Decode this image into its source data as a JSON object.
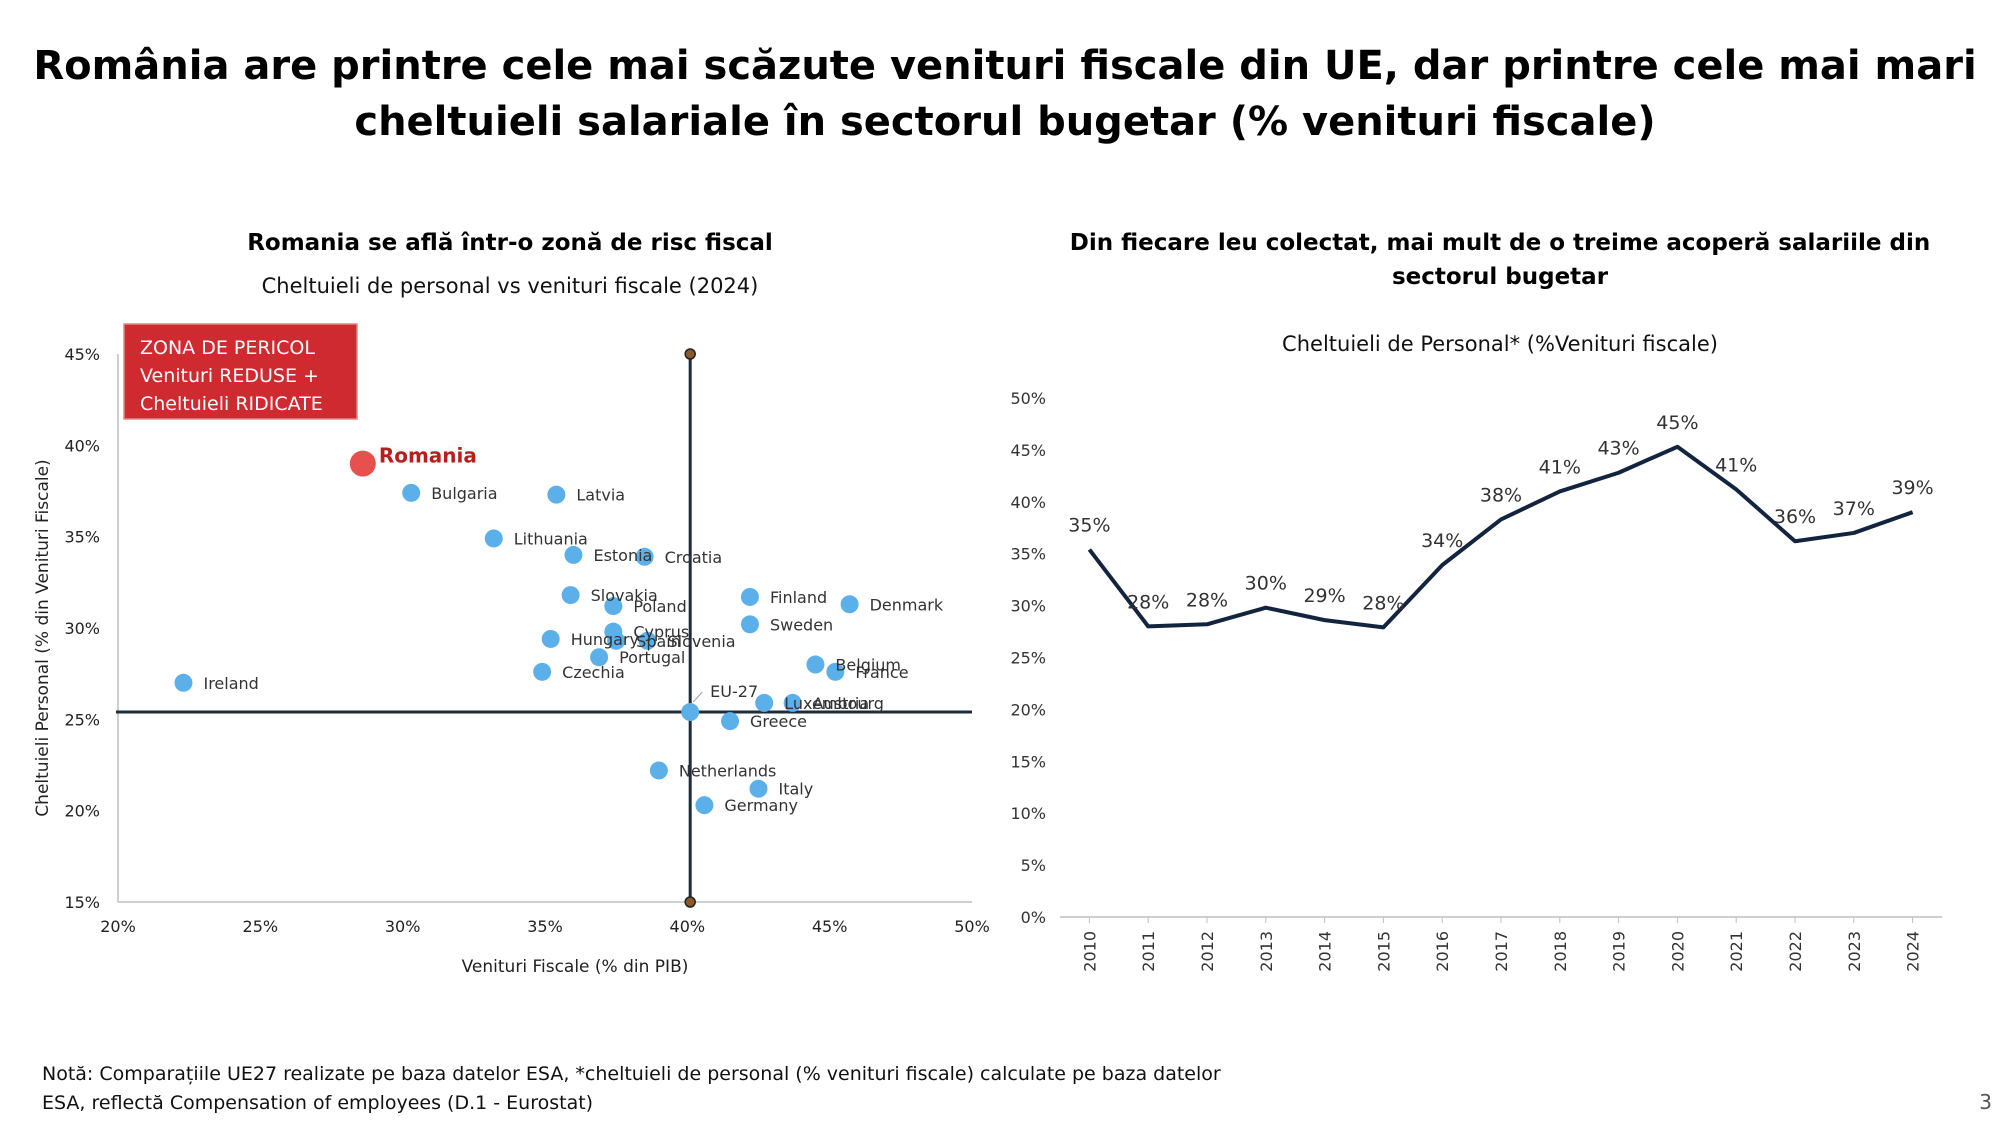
{
  "title": {
    "line1": "România are printre cele mai scăzute venituri fiscale din UE, dar printre cele mai mari",
    "line2": "cheltuieli salariale în sectorul bugetar (% venituri fiscale)"
  },
  "colors": {
    "point": "#5cb0ea",
    "romania": "#e8504e",
    "romania_label": "#b5201f",
    "danger_box": "#cf2a2f",
    "axis_dark": "#1e2b3a",
    "line": "#13243f"
  },
  "chart_data": [
    {
      "type": "scatter",
      "title": "Romania se află într-o zonă de risc fiscal",
      "subtitle": "Cheltuieli de personal vs venituri fiscale (2024)",
      "xlabel": "Venituri Fiscale (% din PIB)",
      "ylabel": "Cheltuieli Personal (% din Venituri Fiscale)",
      "xlim": [
        20,
        50
      ],
      "ylim": [
        15,
        45
      ],
      "x_ticks": [
        "20%",
        "25%",
        "30%",
        "35%",
        "40%",
        "45%",
        "50%"
      ],
      "y_ticks": [
        "15%",
        "20%",
        "25%",
        "30%",
        "35%",
        "40%",
        "45%"
      ],
      "reference_lines": {
        "x": 40.1,
        "y": 25.4
      },
      "danger_zone": [
        "ZONA DE PERICOL",
        "Venituri REDUSE +",
        "Cheltuieli RIDICATE"
      ],
      "highlight": {
        "name": "Romania",
        "x": 28.6,
        "y": 39.0
      },
      "points": [
        {
          "name": "Bulgaria",
          "x": 30.3,
          "y": 37.4
        },
        {
          "name": "Latvia",
          "x": 35.4,
          "y": 37.3
        },
        {
          "name": "Lithuania",
          "x": 33.2,
          "y": 34.9
        },
        {
          "name": "Estonia",
          "x": 36.0,
          "y": 34.0
        },
        {
          "name": "Croatia",
          "x": 38.5,
          "y": 33.9
        },
        {
          "name": "Slovakia",
          "x": 35.9,
          "y": 31.8
        },
        {
          "name": "Poland",
          "x": 37.4,
          "y": 31.2
        },
        {
          "name": "Finland",
          "x": 42.2,
          "y": 31.7
        },
        {
          "name": "Denmark",
          "x": 45.7,
          "y": 31.3
        },
        {
          "name": "Sweden",
          "x": 42.2,
          "y": 30.2
        },
        {
          "name": "Cyprus",
          "x": 37.4,
          "y": 29.8
        },
        {
          "name": "Hungary",
          "x": 35.2,
          "y": 29.4
        },
        {
          "name": "Spain",
          "x": 37.5,
          "y": 29.3
        },
        {
          "name": "Slovenia",
          "x": 38.6,
          "y": 29.3
        },
        {
          "name": "Portugal",
          "x": 36.9,
          "y": 28.4
        },
        {
          "name": "Czechia",
          "x": 34.9,
          "y": 27.6
        },
        {
          "name": "Belgium",
          "x": 44.5,
          "y": 28.0
        },
        {
          "name": "France",
          "x": 45.2,
          "y": 27.6
        },
        {
          "name": "Ireland",
          "x": 22.3,
          "y": 27.0
        },
        {
          "name": "EU-27",
          "x": 40.1,
          "y": 25.4
        },
        {
          "name": "Luxembourg",
          "x": 42.7,
          "y": 25.9
        },
        {
          "name": "Austria",
          "x": 43.7,
          "y": 25.9
        },
        {
          "name": "Greece",
          "x": 41.5,
          "y": 24.9
        },
        {
          "name": "Netherlands",
          "x": 39.0,
          "y": 22.2
        },
        {
          "name": "Italy",
          "x": 42.5,
          "y": 21.2
        },
        {
          "name": "Germany",
          "x": 40.6,
          "y": 20.3
        }
      ]
    },
    {
      "type": "line",
      "title": "Din fiecare leu colectat, mai mult de o treime acoperă salariile din sectorul bugetar",
      "title_lines": [
        "Din fiecare leu colectat, mai mult de o treime acoperă salariile din",
        "sectorul bugetar"
      ],
      "subtitle": "Cheltuieli de Personal* (%Venituri fiscale)",
      "ylim": [
        0,
        50
      ],
      "y_ticks": [
        "0%",
        "5%",
        "10%",
        "15%",
        "20%",
        "25%",
        "30%",
        "35%",
        "40%",
        "45%",
        "50%"
      ],
      "x": [
        "2010",
        "2011",
        "2012",
        "2013",
        "2014",
        "2015",
        "2016",
        "2017",
        "2018",
        "2019",
        "2020",
        "2021",
        "2022",
        "2023",
        "2024"
      ],
      "values": [
        35.4,
        28.0,
        28.2,
        29.8,
        28.6,
        27.9,
        33.9,
        38.3,
        41.0,
        42.8,
        45.3,
        41.2,
        36.2,
        37.0,
        39.0
      ],
      "labels": [
        "35%",
        "28%",
        "28%",
        "30%",
        "29%",
        "28%",
        "34%",
        "38%",
        "41%",
        "43%",
        "45%",
        "41%",
        "36%",
        "37%",
        "39%"
      ]
    }
  ],
  "note": {
    "line1": "Notă: Comparațiile UE27 realizate pe baza datelor ESA, *cheltuieli de personal (% venituri fiscale) calculate pe baza datelor",
    "line2": "ESA, reflectă Compensation of employees (D.1 - Eurostat)"
  },
  "page_number": "3"
}
